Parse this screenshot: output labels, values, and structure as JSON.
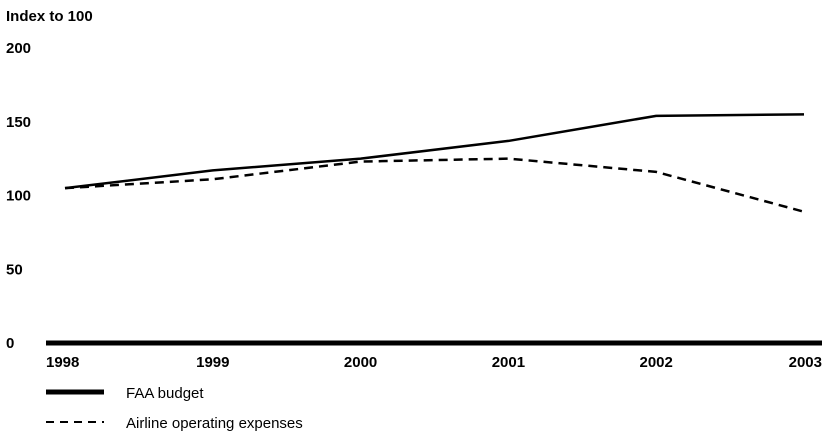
{
  "chart_data": {
    "type": "line",
    "title": "",
    "xlabel": "",
    "ylabel": "Index to 100",
    "ylim": [
      0,
      200
    ],
    "yticks": [
      "0",
      "50",
      "100",
      "150",
      "200"
    ],
    "x": [
      "1998",
      "1999",
      "2000",
      "2001",
      "2002",
      "2003"
    ],
    "series": [
      {
        "name": "FAA budget",
        "style": "solid",
        "values": [
          105,
          117,
          125,
          137,
          154,
          155
        ]
      },
      {
        "name": "Airline operating expenses",
        "style": "dashed",
        "values": [
          105,
          111,
          123,
          125,
          116,
          89
        ]
      }
    ],
    "grid": false,
    "legend": "bottom-left",
    "colors": {
      "line": "#000000",
      "background": "#ffffff"
    }
  }
}
